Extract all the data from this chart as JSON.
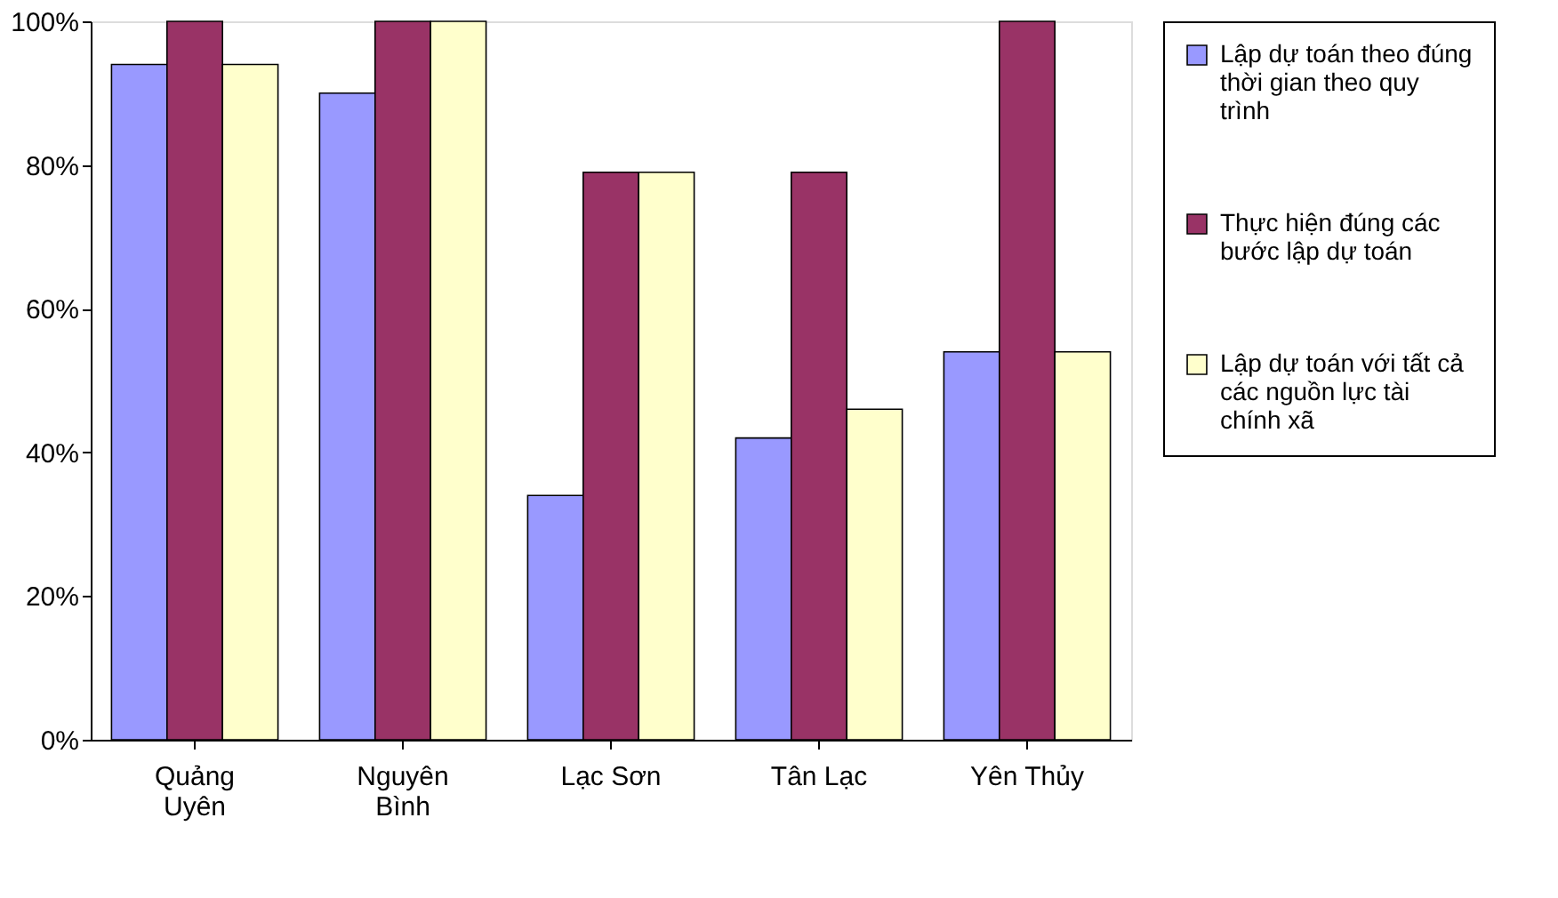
{
  "chart_data": {
    "type": "bar",
    "categories": [
      "Quảng Uyên",
      "Nguyên Bình",
      "Lạc Sơn",
      "Tân Lạc",
      "Yên Thủy"
    ],
    "series": [
      {
        "name": "Lập dự toán theo đúng thời gian theo quy trình",
        "color": "#9999ff",
        "values": [
          94,
          90,
          34,
          42,
          54
        ]
      },
      {
        "name": "Thực hiện đúng các bước lập dự toán",
        "color": "#993366",
        "values": [
          100,
          100,
          79,
          79,
          100
        ]
      },
      {
        "name": "Lập dự toán với tất cả các nguồn lực tài chính xã",
        "color": "#ffffcc",
        "values": [
          94,
          100,
          79,
          46,
          54
        ]
      }
    ],
    "ylim": [
      0,
      100
    ],
    "yticks": [
      {
        "value": 0,
        "label": "0%"
      },
      {
        "value": 20,
        "label": "20%"
      },
      {
        "value": 40,
        "label": "40%"
      },
      {
        "value": 60,
        "label": "60%"
      },
      {
        "value": 80,
        "label": "80%"
      },
      {
        "value": 100,
        "label": "100%"
      }
    ],
    "grid": false,
    "legend": "right"
  }
}
